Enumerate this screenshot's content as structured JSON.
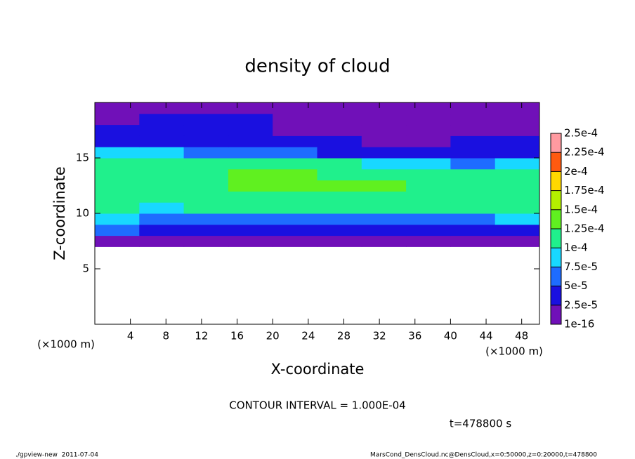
{
  "chart_data": {
    "type": "heatmap",
    "title": "density of cloud",
    "x_label": "X-coordinate",
    "y_label": "Z-coordinate",
    "x_unit": "(×1000 m)",
    "xlim": [
      0,
      50
    ],
    "ylim": [
      0,
      20
    ],
    "xticks": [
      4,
      8,
      12,
      16,
      20,
      24,
      28,
      32,
      36,
      40,
      44,
      48
    ],
    "yticks": [
      5,
      10,
      15
    ],
    "x": [
      2.5,
      7.5,
      12.5,
      17.5,
      22.5,
      27.5,
      32.5,
      37.5,
      42.5,
      47.5
    ],
    "z": [
      0.5,
      1.5,
      2.5,
      3.5,
      4.5,
      5.5,
      6.5,
      7.5,
      8.5,
      9.5,
      10.5,
      11.5,
      12.5,
      13.5,
      14.5,
      15.5,
      16.5,
      17.5,
      18.5,
      19.5
    ],
    "values": [
      [
        null,
        null,
        null,
        null,
        null,
        null,
        null,
        null,
        null,
        null
      ],
      [
        null,
        null,
        null,
        null,
        null,
        null,
        null,
        null,
        null,
        null
      ],
      [
        null,
        null,
        null,
        null,
        null,
        null,
        null,
        null,
        null,
        null
      ],
      [
        null,
        null,
        null,
        null,
        null,
        null,
        null,
        null,
        null,
        null
      ],
      [
        null,
        null,
        null,
        null,
        null,
        null,
        null,
        null,
        null,
        null
      ],
      [
        null,
        null,
        null,
        null,
        null,
        null,
        null,
        null,
        null,
        null
      ],
      [
        null,
        null,
        null,
        null,
        null,
        null,
        null,
        null,
        null,
        null
      ],
      [
        1e-05,
        1e-05,
        1e-05,
        1e-05,
        1e-05,
        1e-05,
        1e-05,
        1e-05,
        1e-05,
        1e-05
      ],
      [
        5e-05,
        4e-05,
        4e-05,
        4e-05,
        4e-05,
        4e-05,
        4e-05,
        4e-05,
        4e-05,
        4e-05
      ],
      [
        8e-05,
        7e-05,
        7e-05,
        7e-05,
        7e-05,
        7e-05,
        7e-05,
        7e-05,
        7e-05,
        8e-05
      ],
      [
        0.000105,
        9.5e-05,
        0.0001,
        0.0001,
        0.000105,
        0.0001,
        0.0001,
        0.0001,
        0.0001,
        0.000105
      ],
      [
        0.000115,
        0.00011,
        0.000115,
        0.00012,
        0.00012,
        0.000115,
        0.000115,
        0.000115,
        0.000115,
        0.000115
      ],
      [
        0.00012,
        0.000115,
        0.00012,
        0.00013,
        0.00013,
        0.000125,
        0.000125,
        0.00012,
        0.00012,
        0.00012
      ],
      [
        0.000115,
        0.000115,
        0.00012,
        0.00013,
        0.00013,
        0.00012,
        0.00012,
        0.000115,
        0.00011,
        0.00011
      ],
      [
        0.00011,
        0.00011,
        0.000105,
        0.00011,
        0.000105,
        0.0001,
        9e-05,
        8e-05,
        7e-05,
        8e-05
      ],
      [
        8e-05,
        8e-05,
        7e-05,
        6e-05,
        5e-05,
        4.5e-05,
        4e-05,
        4e-05,
        3.5e-05,
        4e-05
      ],
      [
        4e-05,
        4e-05,
        3.5e-05,
        3e-05,
        3e-05,
        2.5e-05,
        1e-05,
        2e-05,
        2.5e-05,
        3e-05
      ],
      [
        3e-05,
        3e-05,
        3e-05,
        3e-05,
        2e-05,
        1.5e-05,
        1e-05,
        1e-05,
        2e-05,
        2e-05
      ],
      [
        2e-05,
        2.5e-05,
        3e-05,
        2.5e-05,
        2e-05,
        1.5e-05,
        1e-05,
        1e-05,
        1.5e-05,
        2e-05
      ],
      [
        1.5e-05,
        2e-05,
        2e-05,
        2e-05,
        1.5e-05,
        1e-05,
        1e-05,
        1e-05,
        1.5e-05,
        1.5e-05
      ]
    ],
    "colorbar_ticks": [
      {
        "value": 1e-16,
        "label": "1e-16"
      },
      {
        "value": 2.5e-05,
        "label": "2.5e-5"
      },
      {
        "value": 5e-05,
        "label": "5e-5"
      },
      {
        "value": 7.5e-05,
        "label": "7.5e-5"
      },
      {
        "value": 0.0001,
        "label": "1e-4"
      },
      {
        "value": 0.000125,
        "label": "1.25e-4"
      },
      {
        "value": 0.00015,
        "label": "1.5e-4"
      },
      {
        "value": 0.000175,
        "label": "1.75e-4"
      },
      {
        "value": 0.0002,
        "label": "2e-4"
      },
      {
        "value": 0.000225,
        "label": "2.25e-4"
      },
      {
        "value": 0.00025,
        "label": "2.5e-4"
      }
    ],
    "colors": [
      "#7010b8",
      "#1a10e0",
      "#1e6cff",
      "#18d8ff",
      "#20f08c",
      "#60f020",
      "#b4f000",
      "#ffd800",
      "#ff5a10",
      "#ff9aa0"
    ],
    "contour_note": "CONTOUR INTERVAL = 1.000E-04",
    "time_note": "t=478800 s",
    "footer_left": "./gpview-new  2011-07-04",
    "footer_right": "MarsCond_DensCloud.nc@DensCloud,x=0:50000,z=0:20000,t=478800"
  }
}
